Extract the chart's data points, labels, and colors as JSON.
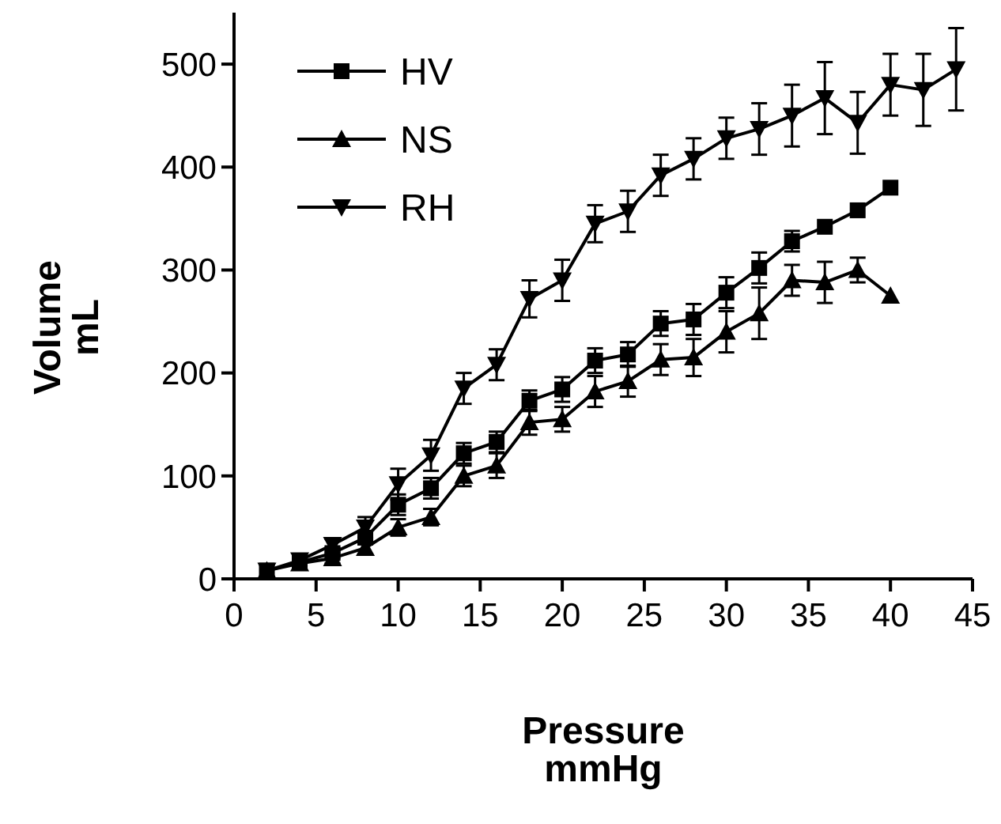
{
  "chart_data": {
    "type": "line",
    "xlabel": "Pressure\nmmHg",
    "ylabel": "Volume\nmL",
    "xlim": [
      0,
      45
    ],
    "xticks": [
      0,
      5,
      10,
      15,
      20,
      25,
      30,
      35,
      40,
      45
    ],
    "ylim": [
      0,
      550
    ],
    "yticks": [
      0,
      100,
      200,
      300,
      400,
      500
    ],
    "legend": "top left",
    "grid": false,
    "line_style": "solid",
    "series": [
      {
        "name": "HV",
        "color": "#000000",
        "marker": "square",
        "x": [
          2,
          4,
          6,
          8,
          10,
          12,
          14,
          16,
          18,
          20,
          22,
          24,
          26,
          28,
          30,
          32,
          34,
          36,
          38,
          40
        ],
        "values": [
          8,
          16,
          25,
          40,
          72,
          88,
          122,
          133,
          173,
          184,
          212,
          218,
          248,
          252,
          278,
          302,
          328,
          342,
          358,
          380
        ],
        "errors": [
          null,
          4,
          5,
          6,
          10,
          10,
          10,
          10,
          10,
          12,
          12,
          12,
          12,
          15,
          15,
          15,
          10,
          null,
          null,
          null
        ]
      },
      {
        "name": "NS",
        "color": "#000000",
        "marker": "triangle",
        "x": [
          2,
          4,
          6,
          8,
          10,
          12,
          14,
          16,
          18,
          20,
          22,
          24,
          26,
          28,
          30,
          32,
          34,
          36,
          38,
          40
        ],
        "values": [
          8,
          15,
          20,
          30,
          50,
          60,
          100,
          110,
          152,
          155,
          182,
          192,
          213,
          215,
          240,
          258,
          290,
          288,
          300,
          275
        ],
        "errors": [
          null,
          4,
          5,
          6,
          8,
          8,
          10,
          12,
          12,
          12,
          15,
          15,
          15,
          18,
          20,
          25,
          15,
          20,
          12,
          null
        ]
      },
      {
        "name": "RH",
        "color": "#000000",
        "marker": "triangle-down",
        "x": [
          2,
          4,
          6,
          8,
          10,
          12,
          14,
          16,
          18,
          20,
          22,
          24,
          26,
          28,
          30,
          32,
          34,
          36,
          38,
          40,
          42,
          44
        ],
        "values": [
          8,
          18,
          33,
          50,
          92,
          120,
          185,
          208,
          272,
          290,
          345,
          357,
          392,
          408,
          428,
          437,
          450,
          467,
          443,
          480,
          475,
          495
        ],
        "errors": [
          null,
          5,
          6,
          10,
          15,
          15,
          15,
          15,
          18,
          20,
          18,
          20,
          20,
          20,
          20,
          25,
          30,
          35,
          30,
          30,
          35,
          40
        ]
      }
    ]
  }
}
